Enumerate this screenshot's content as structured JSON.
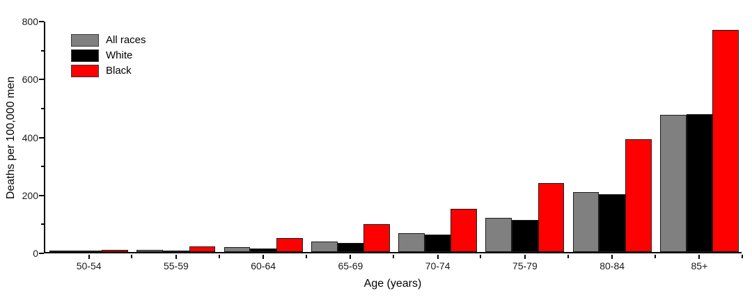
{
  "chart_data": {
    "type": "bar",
    "title": "",
    "xlabel": "Age (years)",
    "ylabel": "Deaths per 100,000 men",
    "categories": [
      "50-54",
      "55-59",
      "60-64",
      "65-69",
      "70-74",
      "75-79",
      "80-84",
      "85+"
    ],
    "series": [
      {
        "name": "All races",
        "color": "#808080",
        "values": [
          2,
          8,
          18,
          37,
          65,
          117,
          206,
          473
        ]
      },
      {
        "name": "White",
        "color": "#000000",
        "values": [
          2,
          6,
          13,
          32,
          60,
          110,
          200,
          475
        ]
      },
      {
        "name": "Black",
        "color": "#ff0000",
        "values": [
          7,
          19,
          47,
          95,
          149,
          238,
          389,
          767
        ]
      }
    ],
    "ylim": [
      0,
      800
    ],
    "y_major_ticks": [
      0,
      200,
      400,
      600,
      800
    ],
    "y_minor_ticks": [
      100,
      300,
      500,
      700
    ],
    "legend_position": "top-left",
    "grid": false,
    "background": "#ffffff"
  }
}
